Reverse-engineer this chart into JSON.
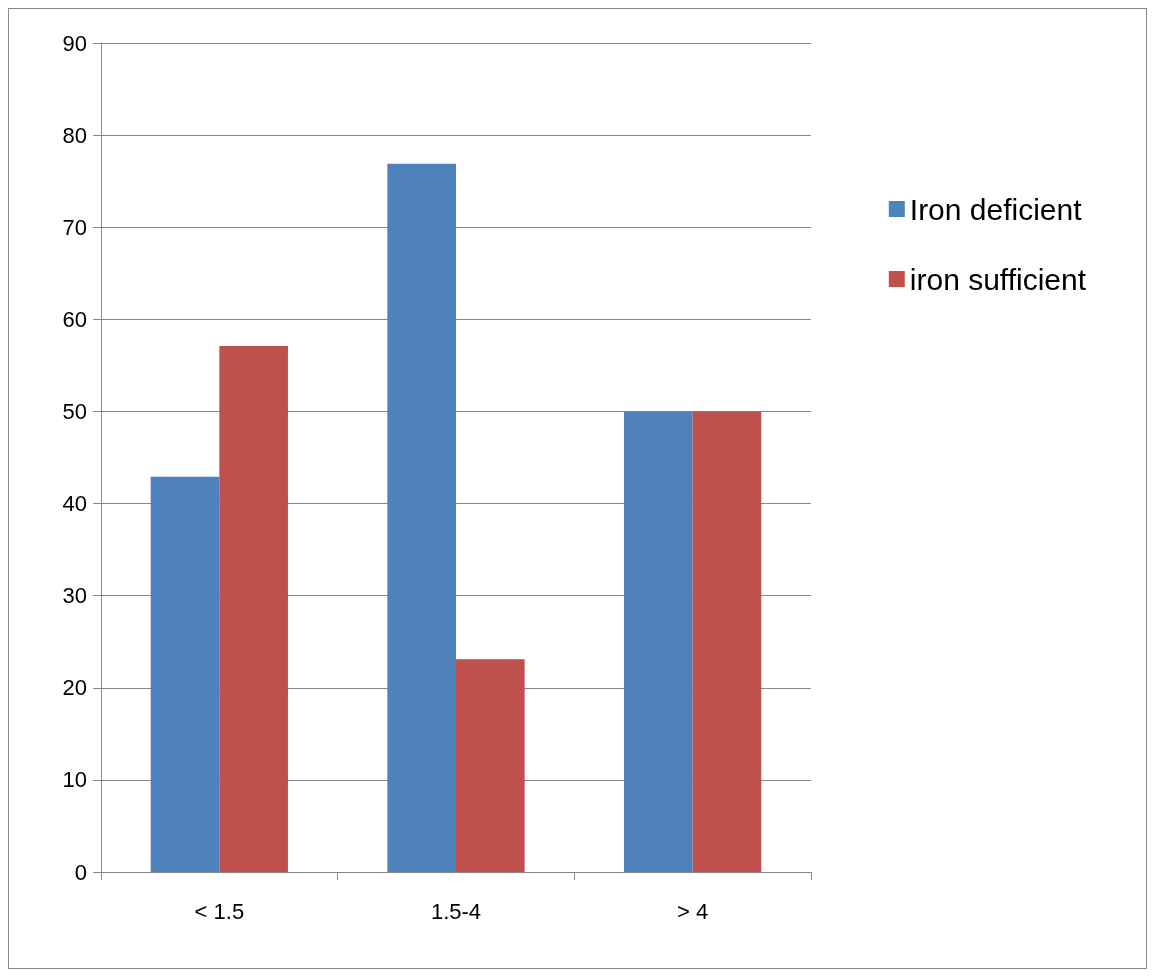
{
  "chart_data": {
    "type": "bar",
    "categories": [
      "< 1.5",
      "1.5-4",
      "> 4"
    ],
    "series": [
      {
        "name": "Iron deficient",
        "color": "#4f81bd",
        "values": [
          42.9,
          76.9,
          50
        ]
      },
      {
        "name": "iron sufficient",
        "color": "#c0504d",
        "values": [
          57.1,
          23.1,
          50
        ]
      }
    ],
    "ylim": [
      0,
      90
    ],
    "yticks": [
      0,
      10,
      20,
      30,
      40,
      50,
      60,
      70,
      80,
      90
    ],
    "grid": "y",
    "legend": "right"
  }
}
